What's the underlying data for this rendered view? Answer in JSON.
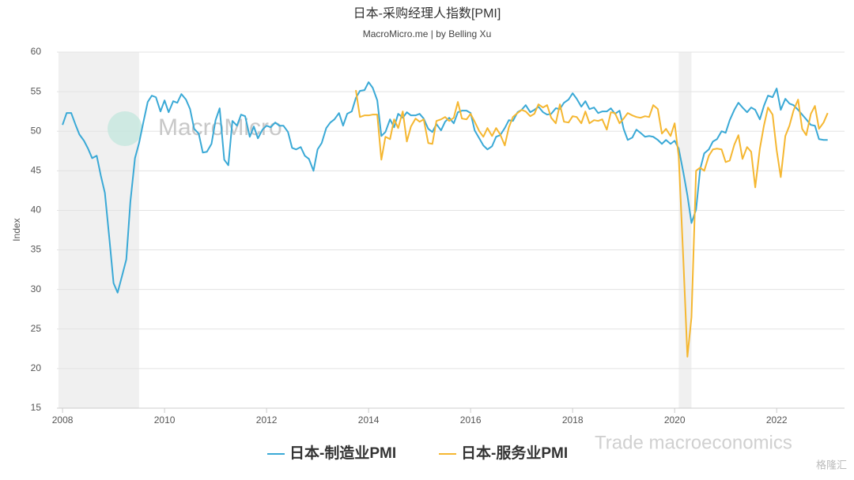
{
  "chart_data": {
    "type": "line",
    "title": "日本-采购经理人指数[PMI]",
    "subtitle": "MacroMicro.me | by Belling Xu",
    "y_label": "Index",
    "watermarks": [
      "MacroMicro",
      "Trade macroeconomics",
      "格隆汇"
    ],
    "x": [
      2008,
      2008.08,
      2008.17,
      2008.25,
      2008.33,
      2008.42,
      2008.5,
      2008.58,
      2008.67,
      2008.75,
      2008.83,
      2008.92,
      2009,
      2009.08,
      2009.17,
      2009.25,
      2009.33,
      2009.42,
      2009.5,
      2009.58,
      2009.67,
      2009.75,
      2009.83,
      2009.92,
      2010,
      2010.08,
      2010.17,
      2010.25,
      2010.33,
      2010.42,
      2010.5,
      2010.58,
      2010.67,
      2010.75,
      2010.83,
      2010.92,
      2011,
      2011.08,
      2011.17,
      2011.25,
      2011.33,
      2011.42,
      2011.5,
      2011.58,
      2011.67,
      2011.75,
      2011.83,
      2011.92,
      2012,
      2012.08,
      2012.17,
      2012.25,
      2012.33,
      2012.42,
      2012.5,
      2012.58,
      2012.67,
      2012.75,
      2012.83,
      2012.92,
      2013,
      2013.08,
      2013.17,
      2013.25,
      2013.33,
      2013.42,
      2013.5,
      2013.58,
      2013.67,
      2013.75,
      2013.83,
      2013.92,
      2014,
      2014.08,
      2014.17,
      2014.25,
      2014.33,
      2014.42,
      2014.5,
      2014.58,
      2014.67,
      2014.75,
      2014.83,
      2014.92,
      2015,
      2015.08,
      2015.17,
      2015.25,
      2015.33,
      2015.42,
      2015.5,
      2015.58,
      2015.67,
      2015.75,
      2015.83,
      2015.92,
      2016,
      2016.08,
      2016.17,
      2016.25,
      2016.33,
      2016.42,
      2016.5,
      2016.58,
      2016.67,
      2016.75,
      2016.83,
      2016.92,
      2017,
      2017.08,
      2017.17,
      2017.25,
      2017.33,
      2017.42,
      2017.5,
      2017.58,
      2017.67,
      2017.75,
      2017.83,
      2017.92,
      2018,
      2018.08,
      2018.17,
      2018.25,
      2018.33,
      2018.42,
      2018.5,
      2018.58,
      2018.67,
      2018.75,
      2018.83,
      2018.92,
      2019,
      2019.08,
      2019.17,
      2019.25,
      2019.33,
      2019.42,
      2019.5,
      2019.58,
      2019.67,
      2019.75,
      2019.83,
      2019.92,
      2020,
      2020.08,
      2020.17,
      2020.25,
      2020.33,
      2020.42,
      2020.5,
      2020.58,
      2020.67,
      2020.75,
      2020.83,
      2020.92,
      2021,
      2021.08,
      2021.17,
      2021.25,
      2021.33,
      2021.42,
      2021.5,
      2021.58,
      2021.67,
      2021.75,
      2021.83,
      2021.92,
      2022,
      2022.08,
      2022.17,
      2022.25,
      2022.33,
      2022.42,
      2022.5,
      2022.58,
      2022.67,
      2022.75,
      2022.83,
      2022.92,
      2023
    ],
    "series": [
      {
        "name": "日本-制造业PMI",
        "color": "#3aa9d6",
        "values": [
          50.8,
          52.3,
          52.3,
          50.9,
          49.6,
          48.8,
          47.8,
          46.6,
          46.9,
          44.4,
          42.2,
          36.3,
          30.8,
          29.6,
          31.8,
          33.8,
          41.1,
          46.6,
          48.5,
          51.0,
          53.7,
          54.5,
          54.3,
          52.5,
          53.9,
          52.4,
          53.8,
          53.6,
          54.7,
          54.0,
          52.8,
          50.3,
          49.7,
          47.3,
          47.4,
          48.4,
          51.4,
          52.9,
          46.4,
          45.7,
          51.3,
          50.7,
          52.1,
          51.9,
          49.3,
          50.6,
          49.1,
          50.2,
          50.7,
          50.5,
          51.1,
          50.7,
          50.7,
          49.9,
          47.9,
          47.7,
          48.0,
          46.9,
          46.5,
          45.0,
          47.7,
          48.5,
          50.4,
          51.1,
          51.5,
          52.3,
          50.7,
          52.2,
          52.5,
          54.2,
          55.1,
          55.2,
          56.2,
          55.5,
          53.9,
          49.4,
          49.9,
          51.5,
          50.5,
          52.2,
          51.7,
          52.4,
          52.0,
          52.0,
          52.2,
          51.6,
          50.3,
          49.9,
          50.9,
          50.1,
          51.2,
          51.7,
          51.0,
          52.4,
          52.6,
          52.6,
          52.3,
          50.1,
          49.1,
          48.2,
          47.7,
          48.1,
          49.3,
          49.5,
          50.4,
          51.4,
          51.3,
          52.4,
          52.7,
          53.3,
          52.4,
          52.7,
          53.1,
          52.4,
          52.1,
          52.2,
          52.9,
          52.8,
          53.6,
          54.0,
          54.8,
          54.1,
          53.1,
          53.8,
          52.8,
          53.0,
          52.3,
          52.5,
          52.5,
          52.9,
          52.2,
          52.6,
          50.3,
          48.9,
          49.2,
          50.2,
          49.8,
          49.3,
          49.4,
          49.3,
          48.9,
          48.4,
          48.9,
          48.4,
          48.8,
          47.8,
          44.8,
          41.9,
          38.4,
          40.1,
          45.2,
          47.2,
          47.7,
          48.7,
          49.0,
          50.0,
          49.8,
          51.4,
          52.7,
          53.6,
          53.0,
          52.4,
          53.0,
          52.7,
          51.5,
          53.2,
          54.5,
          54.3,
          55.4,
          52.7,
          54.1,
          53.5,
          53.3,
          52.7,
          52.1,
          51.5,
          50.8,
          50.7,
          49.0,
          48.9,
          48.9
        ]
      },
      {
        "name": "日本-服务业PMI",
        "color": "#f5b731",
        "values": [
          null,
          null,
          null,
          null,
          null,
          null,
          null,
          null,
          null,
          null,
          null,
          null,
          null,
          null,
          null,
          null,
          null,
          null,
          null,
          null,
          null,
          null,
          null,
          null,
          null,
          null,
          null,
          null,
          null,
          null,
          null,
          null,
          null,
          null,
          null,
          null,
          null,
          null,
          null,
          null,
          null,
          null,
          null,
          null,
          null,
          null,
          null,
          null,
          null,
          null,
          null,
          null,
          null,
          null,
          null,
          null,
          null,
          null,
          null,
          null,
          null,
          null,
          null,
          null,
          null,
          null,
          null,
          null,
          null,
          55.2,
          51.8,
          52.0,
          52.0,
          52.1,
          52.1,
          46.4,
          49.3,
          49.0,
          51.5,
          50.4,
          52.5,
          48.7,
          50.6,
          51.6,
          51.2,
          51.5,
          48.5,
          48.4,
          51.3,
          51.5,
          51.8,
          51.3,
          51.7,
          53.7,
          51.6,
          51.5,
          52.2,
          51.2,
          50.0,
          49.3,
          50.4,
          49.4,
          50.4,
          49.6,
          48.2,
          50.5,
          51.8,
          52.3,
          52.7,
          52.5,
          51.9,
          52.2,
          53.4,
          53.0,
          53.3,
          51.7,
          51.0,
          53.4,
          51.2,
          51.1,
          51.9,
          51.8,
          51.0,
          52.5,
          51.0,
          51.4,
          51.3,
          51.5,
          50.2,
          52.4,
          52.3,
          51.0,
          51.6,
          52.3,
          52.0,
          51.8,
          51.7,
          51.9,
          51.8,
          53.3,
          52.8,
          49.7,
          50.3,
          49.4,
          51.0,
          46.8,
          33.8,
          21.5,
          26.5,
          45.0,
          45.4,
          45.0,
          46.9,
          47.7,
          47.8,
          47.7,
          46.1,
          46.3,
          48.3,
          49.5,
          46.5,
          48.0,
          47.4,
          42.9,
          47.8,
          50.7,
          53.0,
          52.1,
          47.6,
          44.2,
          49.4,
          50.7,
          52.6,
          54.0,
          50.3,
          49.5,
          52.2,
          53.2,
          50.3,
          51.1,
          52.3
        ]
      }
    ],
    "shaded_ranges": [
      [
        2007.92,
        2009.5
      ],
      [
        2020.08,
        2020.33
      ]
    ],
    "shade_color": "#f0f0f0",
    "xlim": [
      2007.89,
      2023.33
    ],
    "xticks": [
      2008,
      2010,
      2012,
      2014,
      2016,
      2018,
      2020,
      2022
    ],
    "ylim": [
      15,
      60
    ],
    "yticks": [
      15,
      20,
      25,
      30,
      35,
      40,
      45,
      50,
      55,
      60
    ],
    "grid": true,
    "legend": "bottom"
  }
}
